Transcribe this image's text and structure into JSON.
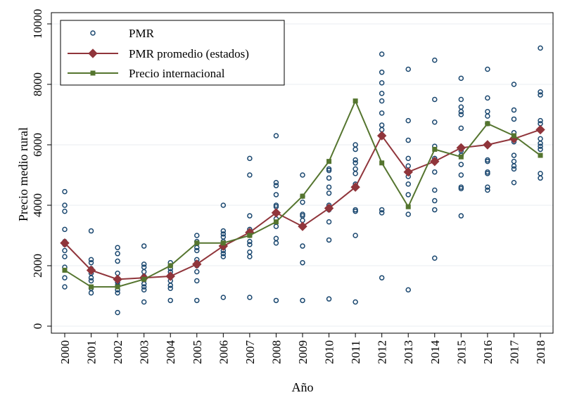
{
  "chart_data": {
    "type": "scatter",
    "title": "",
    "xlabel": "Año",
    "ylabel": "Precio medio rural",
    "xlim": [
      2000,
      2018
    ],
    "ylim": [
      0,
      10000
    ],
    "yticks": [
      0,
      2000,
      4000,
      6000,
      8000,
      10000
    ],
    "x": [
      2000,
      2001,
      2002,
      2003,
      2004,
      2005,
      2006,
      2007,
      2008,
      2009,
      2010,
      2011,
      2012,
      2013,
      2014,
      2015,
      2016,
      2017,
      2018
    ],
    "grid": true,
    "legend_position": "top-left",
    "series": [
      {
        "name": "PMR",
        "kind": "scatter",
        "color": "#1a476f",
        "points": [
          [
            2000,
            4450
          ],
          [
            2000,
            4000
          ],
          [
            2000,
            3800
          ],
          [
            2000,
            3200
          ],
          [
            2000,
            2800
          ],
          [
            2000,
            2700
          ],
          [
            2000,
            2500
          ],
          [
            2000,
            2300
          ],
          [
            2000,
            1950
          ],
          [
            2000,
            1600
          ],
          [
            2000,
            1300
          ],
          [
            2001,
            3150
          ],
          [
            2001,
            2200
          ],
          [
            2001,
            2100
          ],
          [
            2001,
            1900
          ],
          [
            2001,
            1750
          ],
          [
            2001,
            1600
          ],
          [
            2001,
            1500
          ],
          [
            2001,
            1250
          ],
          [
            2001,
            1100
          ],
          [
            2002,
            2600
          ],
          [
            2002,
            2400
          ],
          [
            2002,
            2150
          ],
          [
            2002,
            1750
          ],
          [
            2002,
            1450
          ],
          [
            2002,
            1350
          ],
          [
            2002,
            1200
          ],
          [
            2002,
            1100
          ],
          [
            2002,
            450
          ],
          [
            2003,
            2650
          ],
          [
            2003,
            2050
          ],
          [
            2003,
            1950
          ],
          [
            2003,
            1800
          ],
          [
            2003,
            1650
          ],
          [
            2003,
            1550
          ],
          [
            2003,
            1400
          ],
          [
            2003,
            1300
          ],
          [
            2003,
            1200
          ],
          [
            2003,
            800
          ],
          [
            2004,
            2100
          ],
          [
            2004,
            2000
          ],
          [
            2004,
            1900
          ],
          [
            2004,
            1800
          ],
          [
            2004,
            1700
          ],
          [
            2004,
            1500
          ],
          [
            2004,
            1350
          ],
          [
            2004,
            1250
          ],
          [
            2004,
            850
          ],
          [
            2005,
            3000
          ],
          [
            2005,
            2800
          ],
          [
            2005,
            2600
          ],
          [
            2005,
            2500
          ],
          [
            2005,
            2200
          ],
          [
            2005,
            2100
          ],
          [
            2005,
            2000
          ],
          [
            2005,
            1800
          ],
          [
            2005,
            1500
          ],
          [
            2005,
            850
          ],
          [
            2006,
            4000
          ],
          [
            2006,
            3150
          ],
          [
            2006,
            3050
          ],
          [
            2006,
            2950
          ],
          [
            2006,
            2800
          ],
          [
            2006,
            2600
          ],
          [
            2006,
            2500
          ],
          [
            2006,
            2400
          ],
          [
            2006,
            2300
          ],
          [
            2006,
            950
          ],
          [
            2007,
            5550
          ],
          [
            2007,
            5000
          ],
          [
            2007,
            3650
          ],
          [
            2007,
            3200
          ],
          [
            2007,
            3000
          ],
          [
            2007,
            2800
          ],
          [
            2007,
            2700
          ],
          [
            2007,
            2450
          ],
          [
            2007,
            2300
          ],
          [
            2007,
            950
          ],
          [
            2008,
            6300
          ],
          [
            2008,
            4750
          ],
          [
            2008,
            4650
          ],
          [
            2008,
            4350
          ],
          [
            2008,
            4000
          ],
          [
            2008,
            3950
          ],
          [
            2008,
            3750
          ],
          [
            2008,
            3550
          ],
          [
            2008,
            3300
          ],
          [
            2008,
            2900
          ],
          [
            2008,
            2750
          ],
          [
            2008,
            850
          ],
          [
            2009,
            5000
          ],
          [
            2009,
            4300
          ],
          [
            2009,
            4100
          ],
          [
            2009,
            3700
          ],
          [
            2009,
            3650
          ],
          [
            2009,
            3500
          ],
          [
            2009,
            2650
          ],
          [
            2009,
            2100
          ],
          [
            2009,
            850
          ],
          [
            2010,
            5200
          ],
          [
            2010,
            5150
          ],
          [
            2010,
            4900
          ],
          [
            2010,
            4600
          ],
          [
            2010,
            4400
          ],
          [
            2010,
            4000
          ],
          [
            2010,
            3850
          ],
          [
            2010,
            3450
          ],
          [
            2010,
            2850
          ],
          [
            2010,
            900
          ],
          [
            2011,
            6000
          ],
          [
            2011,
            5850
          ],
          [
            2011,
            5500
          ],
          [
            2011,
            5400
          ],
          [
            2011,
            5200
          ],
          [
            2011,
            5050
          ],
          [
            2011,
            4700
          ],
          [
            2011,
            3850
          ],
          [
            2011,
            3800
          ],
          [
            2011,
            3000
          ],
          [
            2011,
            800
          ],
          [
            2012,
            9000
          ],
          [
            2012,
            8400
          ],
          [
            2012,
            8050
          ],
          [
            2012,
            7700
          ],
          [
            2012,
            7450
          ],
          [
            2012,
            7050
          ],
          [
            2012,
            6650
          ],
          [
            2012,
            6500
          ],
          [
            2012,
            3850
          ],
          [
            2012,
            3750
          ],
          [
            2012,
            1600
          ],
          [
            2013,
            8500
          ],
          [
            2013,
            6800
          ],
          [
            2013,
            6150
          ],
          [
            2013,
            5550
          ],
          [
            2013,
            5300
          ],
          [
            2013,
            4950
          ],
          [
            2013,
            4700
          ],
          [
            2013,
            4350
          ],
          [
            2013,
            3700
          ],
          [
            2013,
            1200
          ],
          [
            2014,
            8800
          ],
          [
            2014,
            7500
          ],
          [
            2014,
            6750
          ],
          [
            2014,
            5950
          ],
          [
            2014,
            5550
          ],
          [
            2014,
            5100
          ],
          [
            2014,
            4500
          ],
          [
            2014,
            4150
          ],
          [
            2014,
            3850
          ],
          [
            2014,
            2250
          ],
          [
            2015,
            8200
          ],
          [
            2015,
            7500
          ],
          [
            2015,
            7250
          ],
          [
            2015,
            7100
          ],
          [
            2015,
            7000
          ],
          [
            2015,
            6550
          ],
          [
            2015,
            5800
          ],
          [
            2015,
            5650
          ],
          [
            2015,
            5350
          ],
          [
            2015,
            5000
          ],
          [
            2015,
            4600
          ],
          [
            2015,
            4550
          ],
          [
            2015,
            3650
          ],
          [
            2016,
            8500
          ],
          [
            2016,
            7550
          ],
          [
            2016,
            7100
          ],
          [
            2016,
            6950
          ],
          [
            2016,
            6700
          ],
          [
            2016,
            5500
          ],
          [
            2016,
            5450
          ],
          [
            2016,
            5100
          ],
          [
            2016,
            5050
          ],
          [
            2016,
            4600
          ],
          [
            2016,
            4500
          ],
          [
            2017,
            8000
          ],
          [
            2017,
            7150
          ],
          [
            2017,
            6850
          ],
          [
            2017,
            6400
          ],
          [
            2017,
            6100
          ],
          [
            2017,
            5650
          ],
          [
            2017,
            5450
          ],
          [
            2017,
            5300
          ],
          [
            2017,
            5200
          ],
          [
            2017,
            4750
          ],
          [
            2018,
            9200
          ],
          [
            2018,
            7750
          ],
          [
            2018,
            7650
          ],
          [
            2018,
            6800
          ],
          [
            2018,
            6700
          ],
          [
            2018,
            6200
          ],
          [
            2018,
            6050
          ],
          [
            2018,
            5950
          ],
          [
            2018,
            5850
          ],
          [
            2018,
            5050
          ],
          [
            2018,
            4900
          ]
        ]
      },
      {
        "name": "PMR promedio (estados)",
        "kind": "line",
        "marker": "diamond",
        "color": "#90353b",
        "values": [
          2750,
          1850,
          1550,
          1600,
          1650,
          2050,
          2650,
          3100,
          3750,
          3300,
          3900,
          4600,
          6300,
          5100,
          5450,
          5900,
          6000,
          6200,
          6500
        ]
      },
      {
        "name": "Precio internacional",
        "kind": "line",
        "marker": "square",
        "color": "#55752f",
        "values": [
          1850,
          1300,
          1300,
          1550,
          2000,
          2750,
          2750,
          3000,
          3450,
          4300,
          5450,
          7450,
          5400,
          3950,
          5850,
          5600,
          6700,
          6300,
          5650
        ]
      }
    ]
  }
}
